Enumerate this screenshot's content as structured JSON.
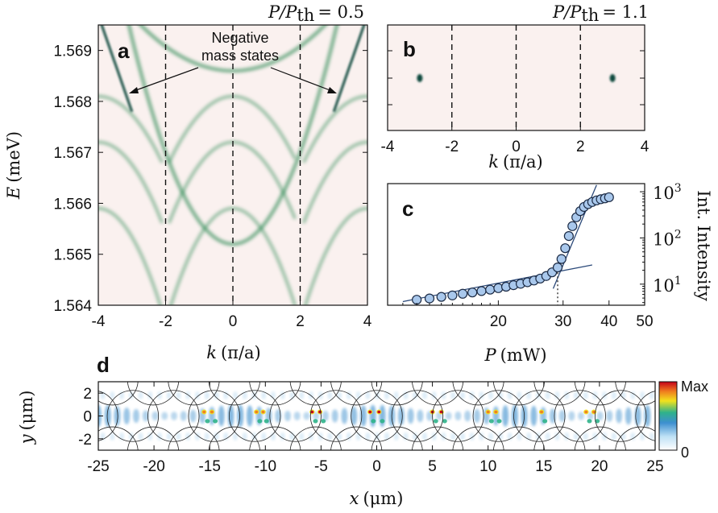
{
  "chart_data": [
    {
      "panel": "a",
      "type": "heatmap",
      "title": "P/Pth = 0.5",
      "xlabel": "k (π/a)",
      "ylabel": "E (meV)",
      "xlim": [
        -4,
        4
      ],
      "ylim": [
        1.564,
        1.5695
      ],
      "xticks": [
        "-4",
        "-2",
        "0",
        "2",
        "4"
      ],
      "yticks": [
        "1.564",
        "1.565",
        "1.566",
        "1.567",
        "1.568",
        "1.569"
      ],
      "dashed_lines_x": [
        -2,
        0,
        2
      ],
      "annotation": [
        "Negative",
        "mass states"
      ],
      "bands": [
        {
          "center": 1.5652,
          "curvature": 0.00045,
          "k0": 0
        },
        {
          "center": 1.5659,
          "curvature": -0.00028,
          "k0": 3
        },
        {
          "center": 1.5672,
          "curvature": -0.00022,
          "k0": 3
        },
        {
          "center": 1.5681,
          "curvature": -0.00018,
          "k0": 3
        },
        {
          "center": 1.5686,
          "curvature": 0.00012,
          "k0": 0
        }
      ]
    },
    {
      "panel": "b",
      "type": "heatmap",
      "title": "P/Pth = 1.1",
      "xlabel": "k (π/a)",
      "xlim": [
        -4,
        4
      ],
      "xticks": [
        "-4",
        "-2",
        "0",
        "2",
        "4"
      ],
      "dashed_lines_x": [
        -2,
        0,
        2
      ],
      "spots": [
        {
          "k": -3.0,
          "E": 1.5681
        },
        {
          "k": 3.0,
          "E": 1.5681
        }
      ]
    },
    {
      "panel": "c",
      "type": "scatter",
      "xlabel": "P (mW)",
      "ylabel": "Int. Intensity",
      "xscale": "log",
      "yscale": "log",
      "xlim": [
        10,
        50
      ],
      "ylim": [
        3.5,
        1500
      ],
      "xticks": [
        "20",
        "30",
        "40",
        "50"
      ],
      "yticks": [
        "10^1",
        "10^2",
        "10^3"
      ],
      "threshold_x": 29,
      "x": [
        12,
        13,
        14,
        15,
        16,
        17,
        18,
        19,
        20,
        21,
        22,
        23,
        24,
        25,
        26,
        27,
        28,
        29,
        29.7,
        30.4,
        31.1,
        31.8,
        32.6,
        33.4,
        34.2,
        35.1,
        36,
        37,
        38,
        39,
        40
      ],
      "y": [
        4.6,
        4.9,
        5.3,
        5.7,
        6.2,
        6.6,
        7.1,
        7.6,
        8.2,
        8.8,
        9.5,
        10.2,
        11,
        12,
        13.2,
        15,
        18,
        23,
        35,
        60,
        110,
        180,
        280,
        380,
        470,
        540,
        600,
        650,
        690,
        720,
        760
      ]
    },
    {
      "panel": "d",
      "type": "heatmap",
      "xlabel": "x (μm)",
      "ylabel": "y (μm)",
      "xlim": [
        -25,
        25
      ],
      "ylim": [
        -3,
        3
      ],
      "xticks": [
        "-25",
        "-20",
        "-15",
        "-10",
        "-5",
        "0",
        "5",
        "10",
        "15",
        "20",
        "25"
      ],
      "yticks": [
        "2",
        "0",
        "-2"
      ],
      "colorbar": {
        "max_label": "Max",
        "min_label": "0"
      }
    }
  ],
  "labels": {
    "a": "a",
    "b": "b",
    "c": "c",
    "d": "d",
    "title_a_prefix": "P/P",
    "title_a_sub": "th",
    "title_a_val": "= 0.5",
    "title_b_prefix": "P/P",
    "title_b_sub": "th",
    "title_b_val": "= 1.1",
    "ann1": "Negative",
    "ann2": "mass states",
    "xlabel_a_sym": "k",
    "xlabel_a_unit": "(π/a)",
    "xlabel_b_sym": "k",
    "xlabel_b_unit": "(π/a)",
    "ylabel_a_sym": "E",
    "ylabel_a_unit": "(meV)",
    "xlabel_c_sym": "P",
    "xlabel_c_unit": "(mW)",
    "ylabel_c": "Int. Intensity",
    "xlabel_d_sym": "x",
    "xlabel_d_unit": "(μm)",
    "ylabel_d_sym": "y",
    "ylabel_d_unit": "(μm)",
    "cb_max": "Max",
    "cb_min": "0"
  },
  "colors": {
    "map_bg": "#faf1ef",
    "band": "#2f8a55",
    "band_dark": "#0b4a3e",
    "point_fill": "#a9c8ec",
    "fit_line": "#2c4a7a"
  }
}
